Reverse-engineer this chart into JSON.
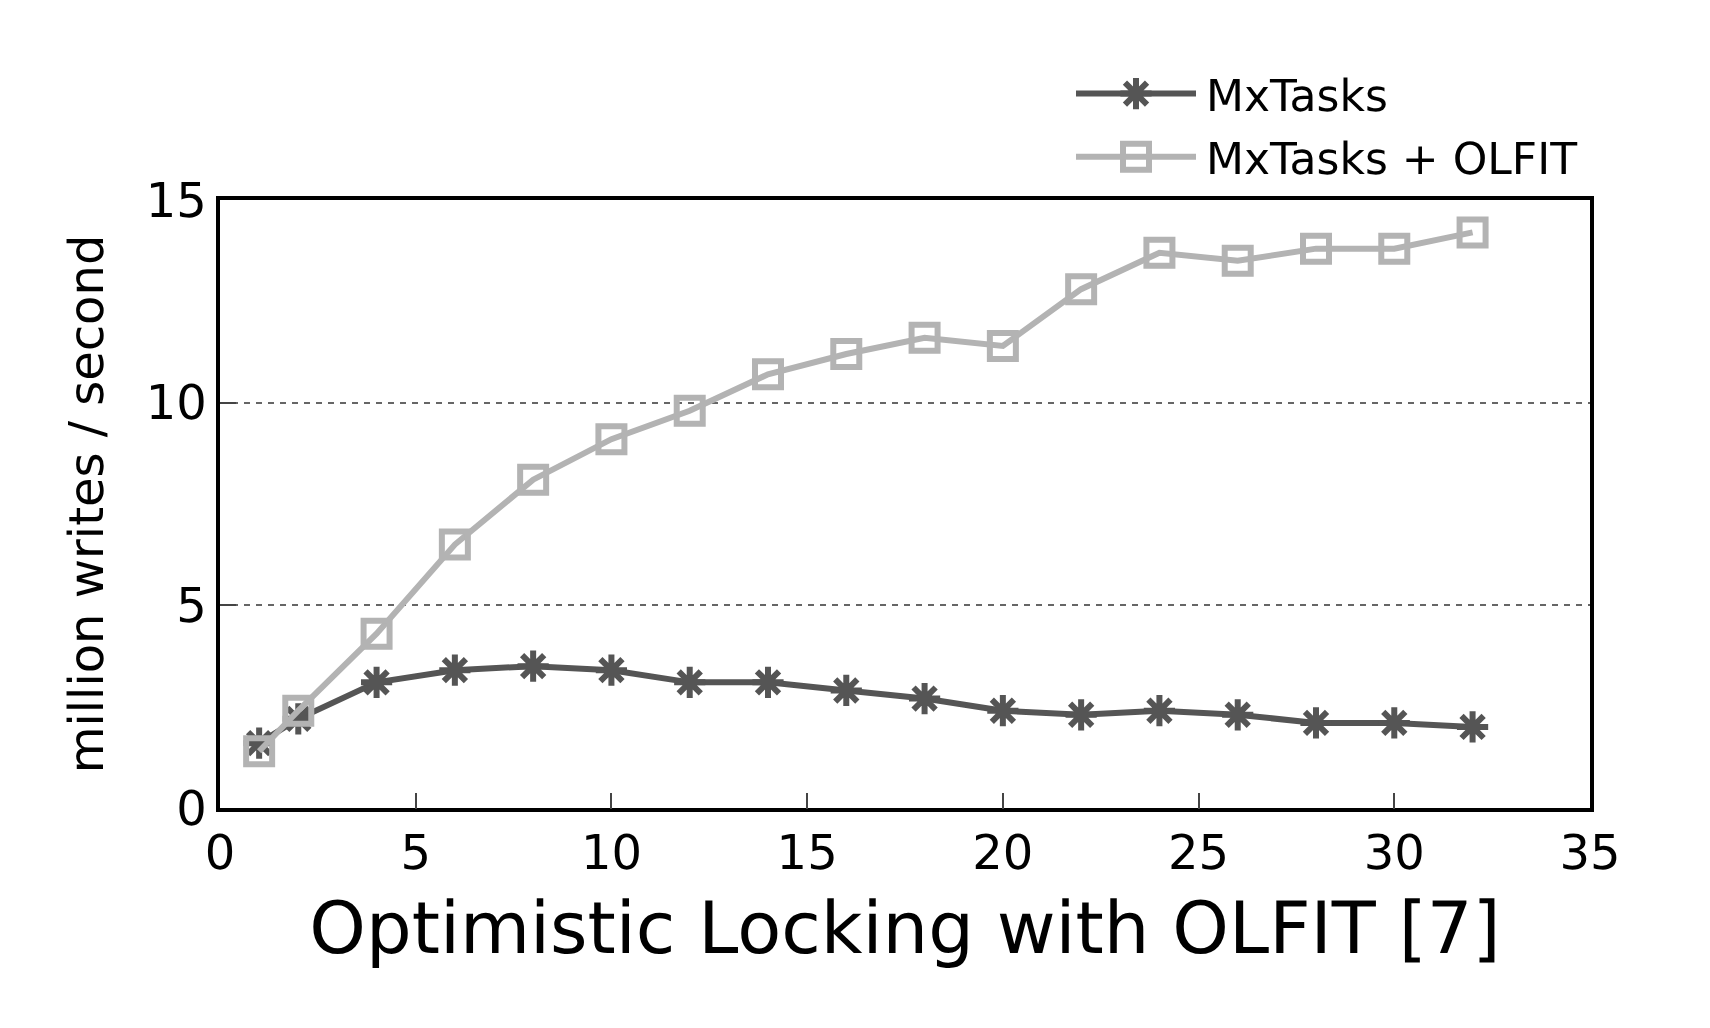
{
  "chart_data": {
    "type": "line",
    "xlabel": "Optimistic Locking with OLFIT [7]",
    "ylabel": "million writes / second",
    "x": [
      1,
      2,
      4,
      6,
      8,
      10,
      12,
      14,
      16,
      18,
      20,
      22,
      24,
      26,
      28,
      30,
      32
    ],
    "series": [
      {
        "name": "MxTasks",
        "color": "#555555",
        "marker": "cross",
        "values": [
          1.6,
          2.2,
          3.1,
          3.4,
          3.5,
          3.4,
          3.1,
          3.1,
          2.9,
          2.7,
          2.4,
          2.3,
          2.4,
          2.3,
          2.1,
          2.1,
          2.0
        ]
      },
      {
        "name": "MxTasks + OLFIT",
        "color": "#b3b3b3",
        "marker": "square",
        "values": [
          1.4,
          2.4,
          4.3,
          6.5,
          8.1,
          9.1,
          9.8,
          10.7,
          11.2,
          11.6,
          11.4,
          12.8,
          13.7,
          13.5,
          13.8,
          13.8,
          14.2
        ]
      }
    ],
    "xlim": [
      0,
      35
    ],
    "xticks": [
      0,
      5,
      10,
      15,
      20,
      25,
      30,
      35
    ],
    "ylim": [
      0,
      15
    ],
    "yticks": [
      0,
      5,
      10,
      15
    ],
    "grid": "y",
    "legend": "top right",
    "line_style": "solid"
  }
}
